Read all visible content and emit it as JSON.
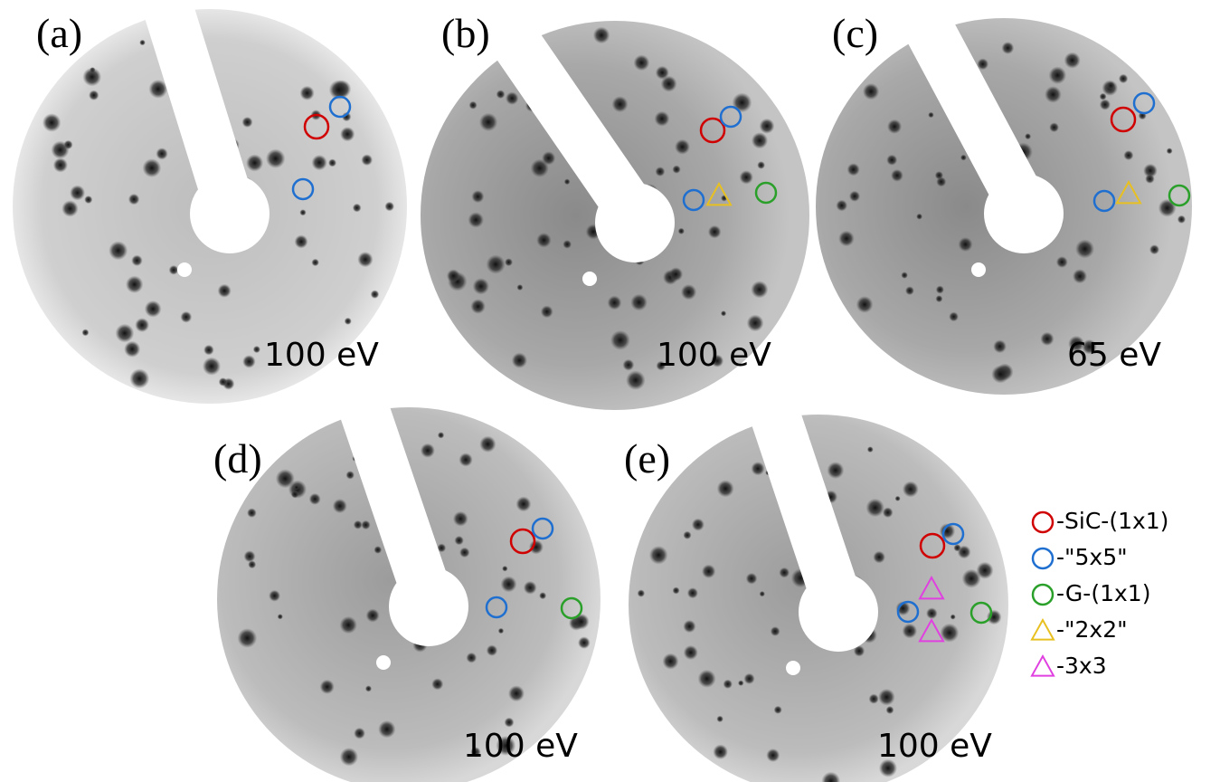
{
  "panels": [
    {
      "label": "(a)",
      "energy": "100 eV"
    },
    {
      "label": "(b)",
      "energy": "100 eV"
    },
    {
      "label": "(c)",
      "energy": "65 eV"
    },
    {
      "label": "(d)",
      "energy": "100 eV"
    },
    {
      "label": "(e)",
      "energy": "100 eV"
    }
  ],
  "legend": [
    {
      "label": "-SiC-(1x1)"
    },
    {
      "label": "-\"5x5\""
    },
    {
      "label": "-G-(1x1)"
    },
    {
      "label": "-\"2x2\""
    },
    {
      "label": "-3x3"
    }
  ]
}
